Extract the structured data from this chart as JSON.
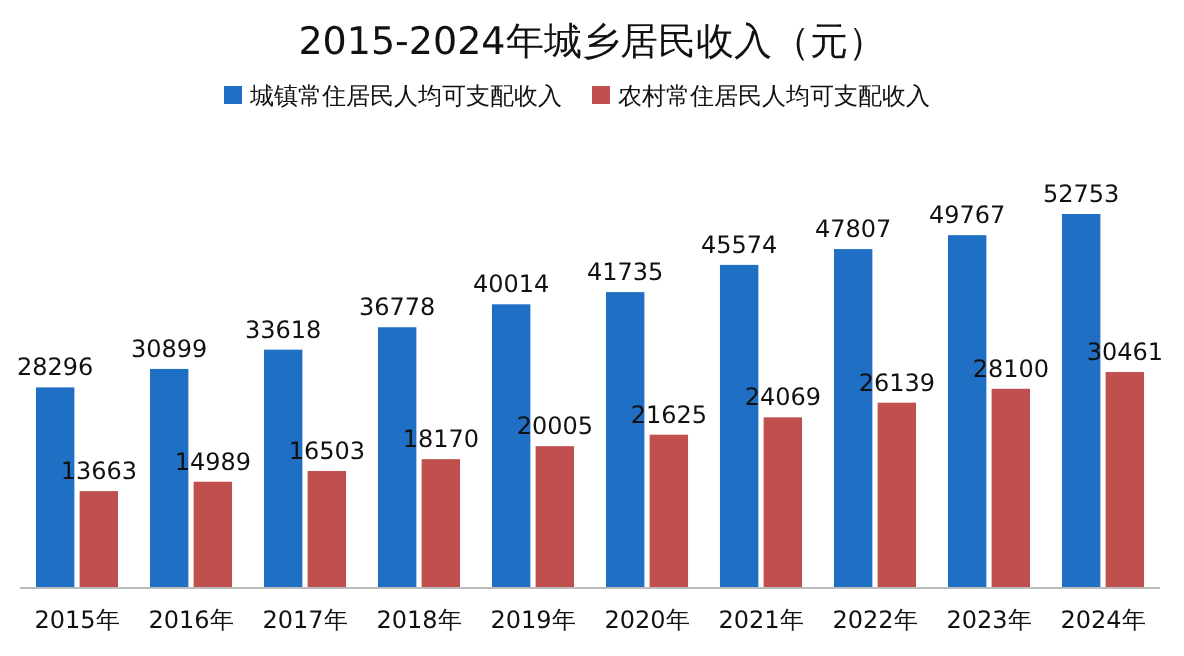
{
  "chart_data": {
    "type": "bar",
    "title": "2015-2024年城乡居民收入（元）",
    "categories": [
      "2015年",
      "2016年",
      "2017年",
      "2018年",
      "2019年",
      "2020年",
      "2021年",
      "2022年",
      "2023年",
      "2024年"
    ],
    "series": [
      {
        "name": "城镇常住居民人均可支配收入",
        "color": "#1f6fc5",
        "values": [
          28296,
          30899,
          33618,
          36778,
          40014,
          41735,
          45574,
          47807,
          49767,
          52753
        ]
      },
      {
        "name": "农村常住居民人均可支配收入",
        "color": "#c0504d",
        "values": [
          13663,
          14989,
          16503,
          18170,
          20005,
          21625,
          24069,
          26139,
          28100,
          30461
        ]
      }
    ],
    "data_labels": true,
    "legend": "top",
    "grid": false
  }
}
